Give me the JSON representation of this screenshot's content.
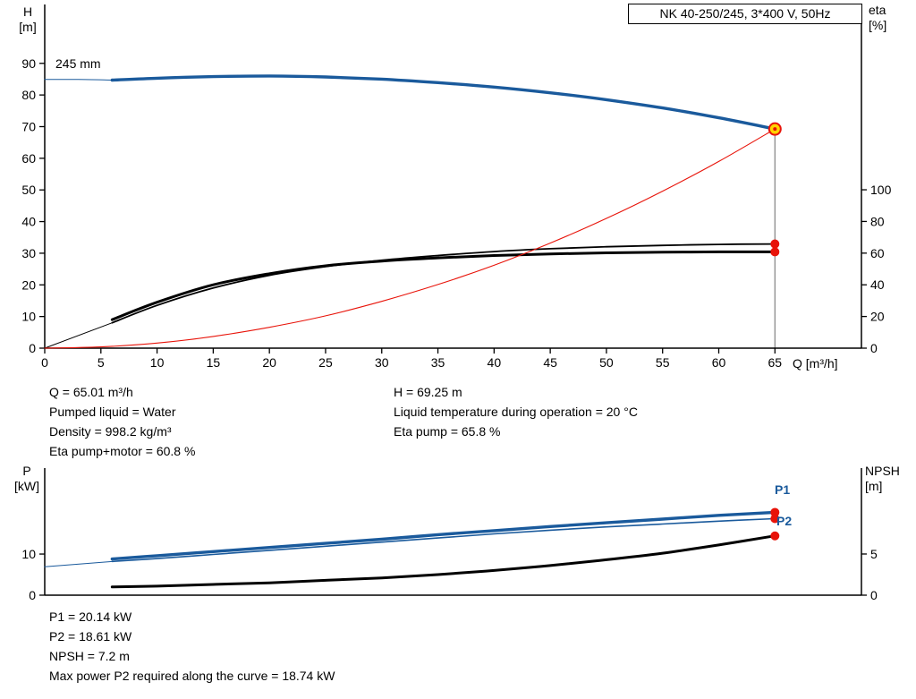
{
  "header": {
    "title": "NK 40-250/245, 3*400 V, 50Hz"
  },
  "colors": {
    "blue": "#1a5a9c",
    "red": "#e81309",
    "yellow": "#ffd400",
    "gray": "#8a8a8a",
    "black": "#000000"
  },
  "labels": {
    "h_axis": [
      "H",
      "[m]"
    ],
    "eta_axis": [
      "eta",
      "[%]"
    ],
    "p_axis": [
      "P",
      "[kW]"
    ],
    "npsh_axis": [
      "NPSH",
      "[m]"
    ],
    "q_axis": "Q [m³/h]",
    "impeller": "245 mm",
    "p1": "P1",
    "p2": "P2"
  },
  "info": {
    "q": "Q = 65.01 m³/h",
    "pumped_liquid": "Pumped liquid = Water",
    "density": "Density = 998.2 kg/m³",
    "eta_pump_motor": "Eta pump+motor = 60.8 %",
    "h": "H = 69.25 m",
    "liquid_temp": "Liquid temperature during operation = 20 °C",
    "eta_pump": "Eta pump = 65.8 %"
  },
  "results": {
    "p1": "P1 = 20.14 kW",
    "p2": "P2 = 18.61 kW",
    "npsh": "NPSH = 7.2 m",
    "max_power": "Max power P2 required along the curve = 18.74 kW"
  },
  "chart_data": [
    {
      "type": "line",
      "title": "NK 40-250/245, 3*400 V, 50Hz",
      "xlabel": "Q [m³/h]",
      "ylabel_left": "H [m]",
      "ylabel_right": "eta [%]",
      "xlim": [
        0,
        72.7
      ],
      "ylim_left": [
        0,
        108.6
      ],
      "ylim_right": [
        0,
        217
      ],
      "grid": false,
      "legend": false,
      "x_ticks": [
        0,
        5,
        10,
        15,
        20,
        25,
        30,
        35,
        40,
        45,
        50,
        55,
        60,
        65
      ],
      "y_ticks_left": [
        0,
        10,
        20,
        30,
        40,
        50,
        60,
        70,
        80,
        90
      ],
      "y_ticks_right": [
        0,
        20,
        40,
        60,
        80,
        100
      ],
      "vline": {
        "x": 65,
        "y_left": 69.25
      },
      "series": [
        {
          "name": "head-245mm-lead",
          "axis": "left",
          "color": "blue",
          "width": 1,
          "x": [
            0,
            3,
            6
          ],
          "y": [
            84.9,
            84.9,
            84.7
          ]
        },
        {
          "name": "head-245mm",
          "axis": "left",
          "color": "blue",
          "width": 3.4,
          "x": [
            6,
            10,
            15,
            20,
            25,
            30,
            35,
            40,
            45,
            50,
            55,
            60,
            65
          ],
          "y": [
            84.7,
            85.3,
            85.8,
            86.0,
            85.7,
            85.0,
            83.9,
            82.5,
            80.7,
            78.5,
            75.9,
            72.8,
            69.25
          ]
        },
        {
          "name": "eta-lead",
          "axis": "right",
          "color": "black",
          "width": 1,
          "x": [
            0,
            6
          ],
          "y": [
            0,
            16
          ]
        },
        {
          "name": "eta-pump",
          "axis": "right",
          "color": "black",
          "width": 1.8,
          "x": [
            6,
            10,
            15,
            20,
            25,
            30,
            35,
            40,
            45,
            50,
            55,
            60,
            65
          ],
          "y": [
            16,
            27,
            38,
            46,
            51.5,
            55.5,
            58.5,
            61,
            62.8,
            64,
            64.9,
            65.5,
            65.8
          ]
        },
        {
          "name": "eta-pump-motor",
          "axis": "right",
          "color": "black",
          "width": 3,
          "x": [
            6,
            10,
            15,
            20,
            25,
            30,
            35,
            40,
            45,
            50,
            55,
            60,
            65
          ],
          "y": [
            18,
            29,
            40,
            47,
            52,
            55,
            57,
            58.5,
            59.5,
            60.2,
            60.6,
            60.8,
            60.8
          ]
        },
        {
          "name": "system-curve",
          "axis": "left",
          "color": "red",
          "width": 1.1,
          "x": [
            0,
            5,
            10,
            15,
            20,
            25,
            30,
            35,
            40,
            45,
            50,
            55,
            60,
            65
          ],
          "y": [
            0,
            0.4,
            1.6,
            3.7,
            6.6,
            10.2,
            14.8,
            20.1,
            26.2,
            33.2,
            41.0,
            49.6,
            59.0,
            69.25
          ]
        }
      ],
      "markers": [
        {
          "name": "duty-point",
          "axis": "left",
          "x": 65,
          "y": 69.25,
          "r": 6.5,
          "fill": "yellow",
          "stroke": "red"
        },
        {
          "name": "duty-point-center",
          "axis": "left",
          "x": 65,
          "y": 69.25,
          "r": 2,
          "fill": "red"
        },
        {
          "name": "eta-pump-point",
          "axis": "right",
          "x": 65,
          "y": 65.8,
          "r": 5,
          "fill": "red"
        },
        {
          "name": "eta-pump-motor-point",
          "axis": "right",
          "x": 65,
          "y": 60.8,
          "r": 5,
          "fill": "red"
        }
      ]
    },
    {
      "type": "line",
      "title": "",
      "xlabel": "",
      "ylabel_left": "P [kW]",
      "ylabel_right": "NPSH [m]",
      "xlim": [
        0,
        72.7
      ],
      "ylim_left": [
        0,
        30.9
      ],
      "ylim_right": [
        0,
        15.43
      ],
      "grid": false,
      "legend": false,
      "x_ticks": [],
      "y_ticks_left": [
        0,
        10
      ],
      "y_ticks_right": [
        0,
        5
      ],
      "series": [
        {
          "name": "p2-lead",
          "axis": "left",
          "color": "blue",
          "width": 1,
          "x": [
            0,
            6
          ],
          "y": [
            6.9,
            8.2
          ]
        },
        {
          "name": "p2",
          "axis": "left",
          "color": "blue",
          "width": 1.6,
          "x": [
            6,
            10,
            15,
            20,
            25,
            30,
            35,
            40,
            45,
            50,
            55,
            60,
            65
          ],
          "y": [
            8.2,
            8.9,
            9.9,
            10.9,
            11.9,
            12.9,
            13.9,
            14.9,
            15.8,
            16.6,
            17.3,
            18.0,
            18.61
          ]
        },
        {
          "name": "p1",
          "axis": "left",
          "color": "blue",
          "width": 3.4,
          "x": [
            6,
            10,
            15,
            20,
            25,
            30,
            35,
            40,
            45,
            50,
            55,
            60,
            65
          ],
          "y": [
            8.8,
            9.6,
            10.6,
            11.6,
            12.6,
            13.6,
            14.7,
            15.7,
            16.7,
            17.6,
            18.5,
            19.4,
            20.14
          ]
        },
        {
          "name": "npsh",
          "axis": "right",
          "color": "black",
          "width": 3,
          "x": [
            6,
            10,
            15,
            20,
            25,
            30,
            35,
            40,
            45,
            50,
            55,
            60,
            65
          ],
          "y": [
            1.0,
            1.1,
            1.3,
            1.5,
            1.8,
            2.1,
            2.5,
            3.0,
            3.6,
            4.3,
            5.1,
            6.1,
            7.2
          ]
        }
      ],
      "markers": [
        {
          "name": "p1-point",
          "axis": "left",
          "x": 65,
          "y": 20.14,
          "r": 5,
          "fill": "red"
        },
        {
          "name": "p2-point",
          "axis": "left",
          "x": 65,
          "y": 18.61,
          "r": 5,
          "fill": "red"
        },
        {
          "name": "npsh-point",
          "axis": "right",
          "x": 65,
          "y": 7.2,
          "r": 5,
          "fill": "red"
        }
      ]
    }
  ]
}
